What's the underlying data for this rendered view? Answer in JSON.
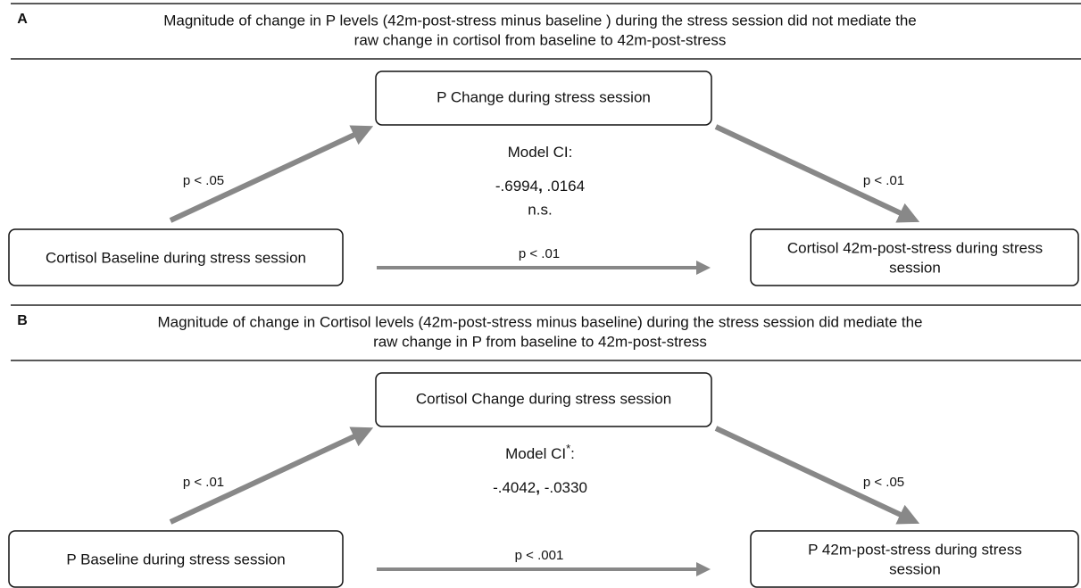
{
  "panels": [
    {
      "label": "A",
      "title": [
        "Magnitude of change in P levels (42m-post-stress minus baseline ) during the stress session did not mediate the",
        "raw change in cortisol from baseline to 42m-post-stress"
      ],
      "mediator": "P Change during stress session",
      "predictor": "Cortisol Baseline during stress session",
      "outcome": [
        "Cortisol 42m-post-stress during stress",
        "session"
      ],
      "path_a": "p < .05",
      "path_b": "p < .01",
      "path_c": "p < .01",
      "ci_label": [
        "Model CI:"
      ],
      "ci_values": [
        "-.6994",
        ", ",
        ".0164"
      ],
      "ci_note": "n.s."
    },
    {
      "label": "B",
      "title": [
        "Magnitude of change in Cortisol levels (42m-post-stress minus baseline) during the stress session did mediate the",
        "raw change in P from baseline to 42m-post-stress"
      ],
      "mediator": "Cortisol Change during stress session",
      "predictor": "P Baseline during stress session",
      "outcome": [
        "P 42m-post-stress during stress",
        "session"
      ],
      "path_a": "p < .01",
      "path_b": "p < .05",
      "path_c": "p < .001",
      "ci_label": [
        "Model CI",
        "*",
        ":"
      ],
      "ci_values": [
        "-.4042",
        ", ",
        "-.0330"
      ]
    }
  ]
}
